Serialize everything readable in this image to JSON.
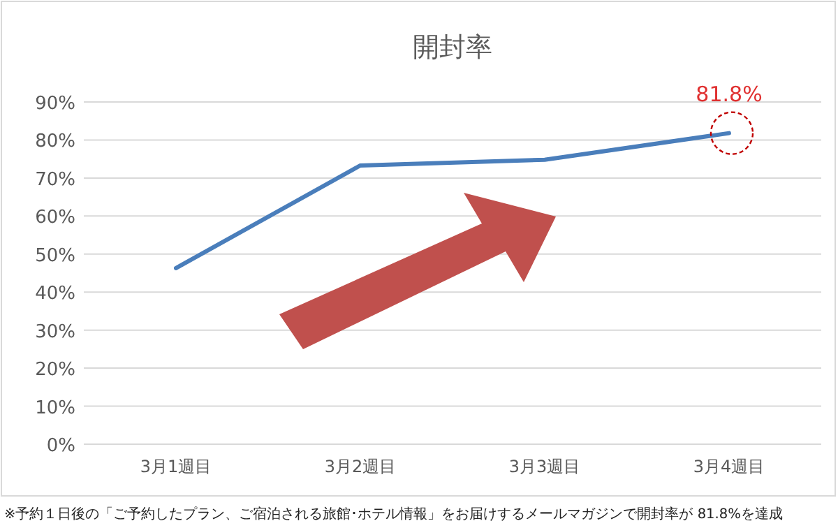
{
  "chart_data": {
    "type": "line",
    "title": "開封率",
    "categories": [
      "3月1週目",
      "3月2週目",
      "3月3週目",
      "3月4週目"
    ],
    "series": [
      {
        "color": "#4a7ebb",
        "values": [
          46.3,
          73.3,
          74.8,
          81.8
        ]
      }
    ],
    "ylim": [
      0,
      90
    ],
    "yticks": [
      {
        "value": 0,
        "label": "0%"
      },
      {
        "value": 10,
        "label": "10%"
      },
      {
        "value": 20,
        "label": "20%"
      },
      {
        "value": 30,
        "label": "30%"
      },
      {
        "value": 40,
        "label": "40%"
      },
      {
        "value": 50,
        "label": "50%"
      },
      {
        "value": 60,
        "label": "60%"
      },
      {
        "value": 70,
        "label": "70%"
      },
      {
        "value": 80,
        "label": "80%"
      },
      {
        "value": 90,
        "label": "90%"
      }
    ],
    "grid": "y",
    "marker": "none",
    "line_style": "solid",
    "annotations": [
      {
        "text": "81.8%",
        "x": "3月4週目",
        "y": 81.8
      },
      "※予約１日後の「ご予約したプラン、ご宿泊される旅館･ホテル情報」をお届けするメールマガジンで開封率が 81.8%を達成"
    ]
  }
}
